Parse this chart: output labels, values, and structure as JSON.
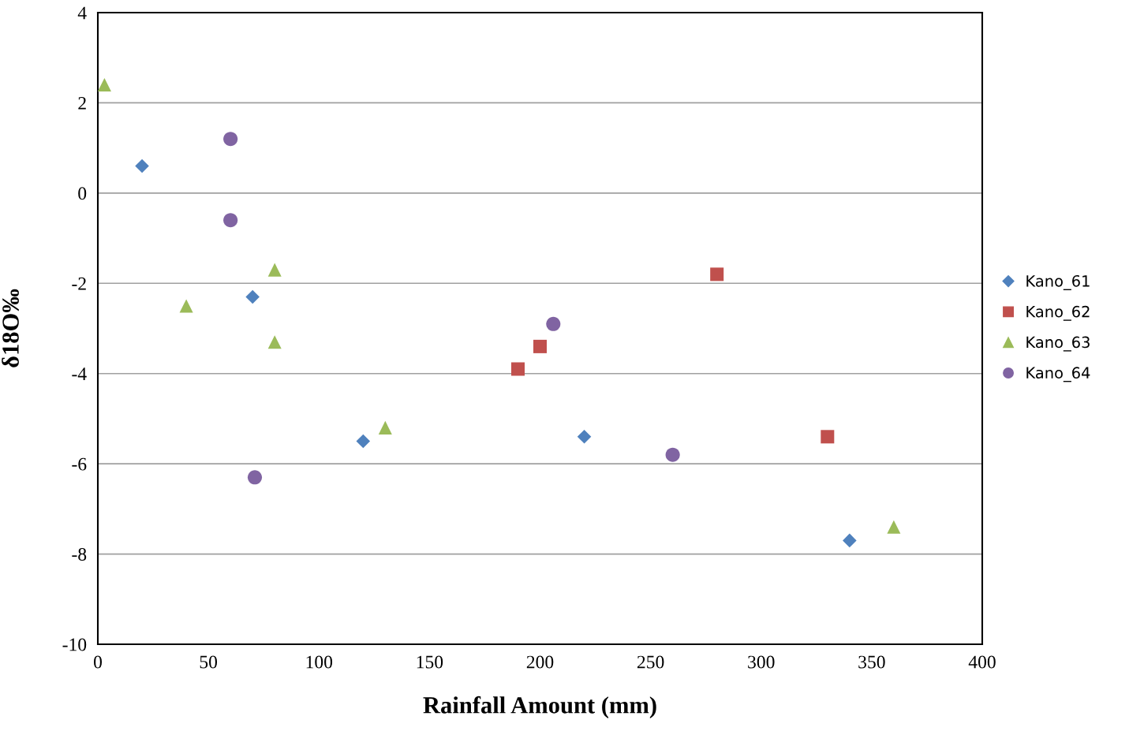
{
  "chart_data": {
    "type": "scatter",
    "xlabel": "Rainfall Amount (mm)",
    "ylabel": "δ18O‰",
    "xlim": [
      0,
      400
    ],
    "xticks": [
      0,
      50,
      100,
      150,
      200,
      250,
      300,
      350,
      400
    ],
    "ylim": [
      -10,
      4
    ],
    "yticks": [
      -10,
      -8,
      -6,
      -4,
      -2,
      0,
      2,
      4
    ],
    "grid": "y",
    "legend": "right",
    "series": [
      {
        "name": "Kano_61",
        "color": "#4f81bd",
        "marker": "diamond",
        "x": [
          20,
          70,
          120,
          220,
          340
        ],
        "values": [
          0.6,
          -2.3,
          -5.5,
          -5.4,
          -7.7
        ]
      },
      {
        "name": "Kano_62",
        "color": "#c0504d",
        "marker": "square",
        "x": [
          190,
          200,
          280,
          330
        ],
        "values": [
          -3.9,
          -3.4,
          -1.8,
          -5.4
        ]
      },
      {
        "name": "Kano_63",
        "color": "#9bbb59",
        "marker": "triangle",
        "x": [
          3,
          40,
          80,
          80,
          130,
          360
        ],
        "values": [
          2.4,
          -2.5,
          -1.7,
          -3.3,
          -5.2,
          -7.4
        ]
      },
      {
        "name": "Kano_64",
        "color": "#8064a2",
        "marker": "circle",
        "x": [
          60,
          60,
          71,
          206,
          260
        ],
        "values": [
          1.2,
          -0.6,
          -6.3,
          -2.9,
          -5.8
        ]
      }
    ]
  }
}
